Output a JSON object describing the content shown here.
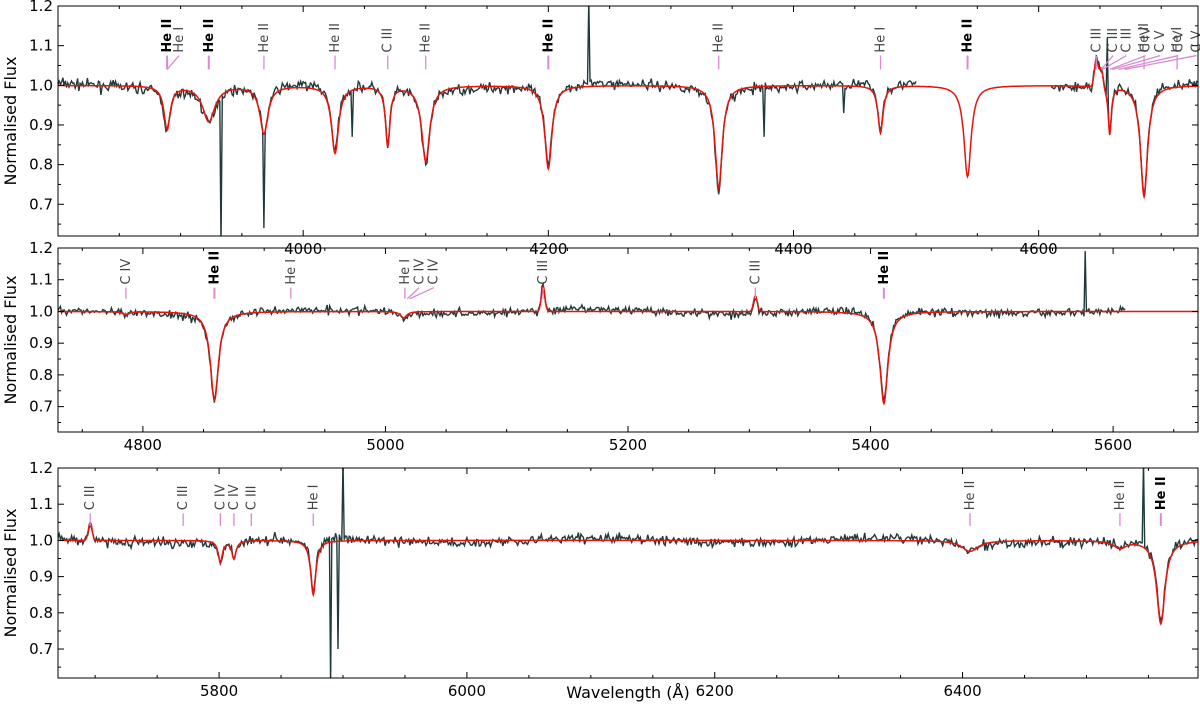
{
  "colors": {
    "observed": "#1f3a3a",
    "model": "#e8130b",
    "marker": "#d98ad4",
    "frame": "#000000"
  },
  "xlabel": "Wavelength (Å)",
  "chart_data": [
    {
      "type": "line",
      "ylabel": "Normalised Flux",
      "xlim": [
        3800,
        4730
      ],
      "ylim": [
        0.62,
        1.2
      ],
      "xticks": [
        4000,
        4200,
        4400,
        4600
      ],
      "yticks": [
        0.7,
        0.8,
        0.9,
        1.0,
        1.1,
        1.2
      ],
      "observed_ranges": [
        [
          3800,
          4500
        ],
        [
          4610,
          4730
        ]
      ],
      "absorption": [
        {
          "w": 3889,
          "d": 0.11,
          "s": 3
        },
        {
          "w": 3923,
          "d": 0.09,
          "s": 6
        },
        {
          "w": 3968,
          "d": 0.12,
          "s": 4
        },
        {
          "w": 4026,
          "d": 0.17,
          "s": 3.5
        },
        {
          "w": 4069,
          "d": 0.15,
          "s": 2.2
        },
        {
          "w": 4100,
          "d": 0.19,
          "s": 4
        },
        {
          "w": 4200,
          "d": 0.21,
          "s": 3.5
        },
        {
          "w": 4339,
          "d": 0.26,
          "s": 3.5
        },
        {
          "w": 4471,
          "d": 0.12,
          "s": 2.5
        },
        {
          "w": 4542,
          "d": 0.23,
          "s": 3.5
        },
        {
          "w": 4658,
          "d": 0.12,
          "s": 1.5
        },
        {
          "w": 4686,
          "d": 0.28,
          "s": 3.5
        }
      ],
      "emission": [
        {
          "w": 4647,
          "d": 0.07,
          "s": 1.5
        },
        {
          "w": 4651,
          "d": 0.05,
          "s": 1.5
        }
      ],
      "spikes": [
        {
          "w": 3933,
          "y": 0.6
        },
        {
          "w": 3968,
          "y": 0.64
        },
        {
          "w": 4040,
          "y": 0.87
        },
        {
          "w": 4233,
          "y": 1.22
        },
        {
          "w": 4376,
          "y": 0.87
        },
        {
          "w": 4441,
          "y": 0.93
        },
        {
          "w": 4656,
          "y": 1.12
        }
      ],
      "lines": [
        {
          "w": 3889,
          "label": "He II",
          "bold": true
        },
        {
          "w": 3889,
          "label": "He I",
          "bold": false
        },
        {
          "w": 3923,
          "label": "He II",
          "bold": true
        },
        {
          "w": 3968,
          "label": "He II",
          "bold": false
        },
        {
          "w": 4026,
          "label": "He II",
          "bold": false
        },
        {
          "w": 4069,
          "label": "C III",
          "bold": false
        },
        {
          "w": 4100,
          "label": "He II",
          "bold": false
        },
        {
          "w": 4200,
          "label": "He II",
          "bold": true
        },
        {
          "w": 4339,
          "label": "He II",
          "bold": false
        },
        {
          "w": 4471,
          "label": "He I",
          "bold": false
        },
        {
          "w": 4542,
          "label": "He II",
          "bold": true
        },
        {
          "w": 4647,
          "label": "C III",
          "bold": false
        },
        {
          "w": 4651,
          "label": "C III",
          "bold": false
        },
        {
          "w": 4652,
          "label": "C III",
          "bold": false
        },
        {
          "w": 4658,
          "label": "C IV",
          "bold": false
        },
        {
          "w": 4660,
          "label": "C V",
          "bold": false
        },
        {
          "w": 4665,
          "label": "C V",
          "bold": false
        },
        {
          "w": 4670,
          "label": "C V",
          "bold": false
        },
        {
          "w": 4686,
          "label": "He II",
          "bold": false
        },
        {
          "w": 4713,
          "label": "He I",
          "bold": false
        }
      ]
    },
    {
      "type": "line",
      "ylabel": "Normalised Flux",
      "xlim": [
        4730,
        5670
      ],
      "ylim": [
        0.62,
        1.2
      ],
      "xticks": [
        4800,
        5000,
        5200,
        5400,
        5600
      ],
      "yticks": [
        0.7,
        0.8,
        0.9,
        1.0,
        1.1,
        1.2
      ],
      "observed_ranges": [
        [
          4730,
          5610
        ]
      ],
      "absorption": [
        {
          "w": 4859,
          "d": 0.28,
          "s": 4
        },
        {
          "w": 5015,
          "d": 0.02,
          "s": 3
        },
        {
          "w": 5411,
          "d": 0.29,
          "s": 4
        },
        {
          "w": 4786,
          "d": 0.01,
          "s": 3
        }
      ],
      "emission": [
        {
          "w": 5130,
          "d": 0.08,
          "s": 1.5
        },
        {
          "w": 5305,
          "d": 0.05,
          "s": 1.5
        }
      ],
      "spikes": [
        {
          "w": 5577,
          "y": 1.19
        }
      ],
      "lines": [
        {
          "w": 4786,
          "label": "C IV",
          "bold": false
        },
        {
          "w": 4859,
          "label": "He II",
          "bold": true
        },
        {
          "w": 4922,
          "label": "He I",
          "bold": false
        },
        {
          "w": 5016,
          "label": "He I",
          "bold": false
        },
        {
          "w": 5018,
          "label": "C IV",
          "bold": false
        },
        {
          "w": 5020,
          "label": "C IV",
          "bold": false
        },
        {
          "w": 5130,
          "label": "C III",
          "bold": false
        },
        {
          "w": 5305,
          "label": "C III",
          "bold": false
        },
        {
          "w": 5411,
          "label": "He II",
          "bold": true
        }
      ]
    },
    {
      "type": "line",
      "ylabel": "Normalised Flux",
      "xlim": [
        5670,
        6590
      ],
      "ylim": [
        0.62,
        1.2
      ],
      "xticks": [
        5800,
        6000,
        6200,
        6400
      ],
      "yticks": [
        0.7,
        0.8,
        0.9,
        1.0,
        1.1,
        1.2
      ],
      "observed_ranges": [
        [
          5670,
          6590
        ]
      ],
      "absorption": [
        {
          "w": 5801,
          "d": 0.06,
          "s": 2
        },
        {
          "w": 5812,
          "d": 0.05,
          "s": 2
        },
        {
          "w": 5876,
          "d": 0.15,
          "s": 2.5
        },
        {
          "w": 6406,
          "d": 0.03,
          "s": 8
        },
        {
          "w": 6527,
          "d": 0.02,
          "s": 6
        },
        {
          "w": 6560,
          "d": 0.23,
          "s": 4
        }
      ],
      "emission": [
        {
          "w": 5696,
          "d": 0.05,
          "s": 1.5
        }
      ],
      "spikes": [
        {
          "w": 5890,
          "y": 0.6
        },
        {
          "w": 5896,
          "y": 0.7
        },
        {
          "w": 5900,
          "y": 1.22
        },
        {
          "w": 6546,
          "y": 1.22
        }
      ],
      "lines": [
        {
          "w": 5696,
          "label": "C III",
          "bold": false
        },
        {
          "w": 5771,
          "label": "C III",
          "bold": false
        },
        {
          "w": 5801,
          "label": "C IV",
          "bold": false
        },
        {
          "w": 5812,
          "label": "C IV",
          "bold": false
        },
        {
          "w": 5826,
          "label": "C III",
          "bold": false
        },
        {
          "w": 5876,
          "label": "He I",
          "bold": false
        },
        {
          "w": 6406,
          "label": "He II",
          "bold": false
        },
        {
          "w": 6527,
          "label": "He II",
          "bold": false
        },
        {
          "w": 6560,
          "label": "He II",
          "bold": true
        }
      ]
    }
  ]
}
